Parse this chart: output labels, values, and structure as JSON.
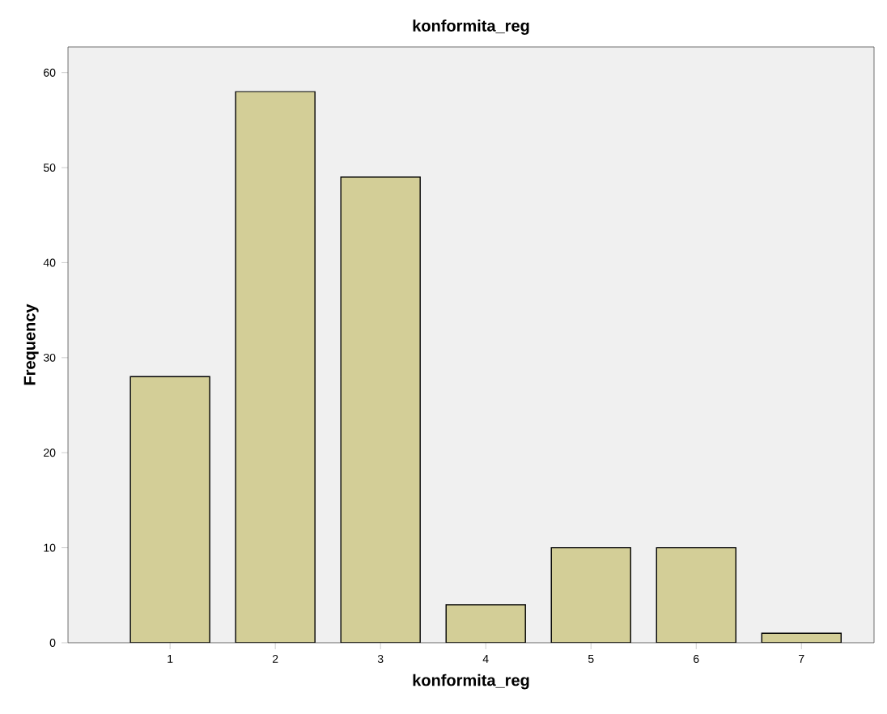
{
  "chart_data": {
    "type": "bar",
    "title": "konformita_reg",
    "xlabel": "konformita_reg",
    "ylabel": "Frequency",
    "categories": [
      "1",
      "2",
      "3",
      "4",
      "5",
      "6",
      "7"
    ],
    "values": [
      28,
      58,
      49,
      4,
      10,
      10,
      1
    ],
    "color": "#d3ce97",
    "ylim": [
      0,
      62.7
    ],
    "yticks": [
      0,
      10,
      20,
      30,
      40,
      50,
      60
    ]
  }
}
